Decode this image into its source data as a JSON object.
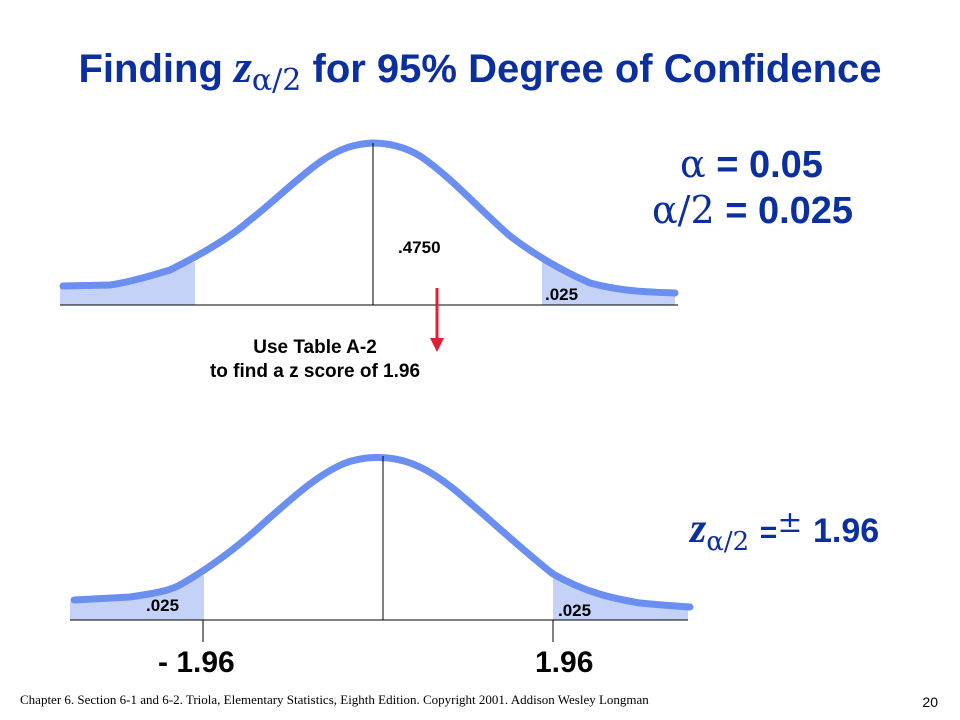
{
  "slide": {
    "title_prefix": "Finding",
    "title_var": "z",
    "title_sub": "α/2",
    "title_suffix": "for 95% Degree of Confidence",
    "footer": "Chapter 6.  Section 6-1 and 6-2.  Triola,  Elementary Statistics, Eighth Edition. Copyright  2001.  Addison Wesley Longman",
    "page_number": "20"
  },
  "alpha": {
    "alpha_symbol": "α",
    "alpha_value": "= 0.05",
    "half_symbol": "α/2",
    "half_value": "= 0.025"
  },
  "top_curve": {
    "center_area": ".4750",
    "right_tail": ".025"
  },
  "table_note": {
    "line1": "Use Table A-2",
    "line2": "to find a z score of 1.96"
  },
  "bottom_curve": {
    "left_tail": ".025",
    "right_tail": ".025",
    "left_z": "- 1.96",
    "right_z": "1.96"
  },
  "result": {
    "var": "z",
    "sub": "α/2",
    "equals": "=",
    "pm": "±",
    "value": "1.96"
  },
  "colors": {
    "title": "#0b2f9e",
    "curve": "#6b8ff0",
    "shade": "#c5d2f8",
    "arrow": "#e0203a"
  }
}
